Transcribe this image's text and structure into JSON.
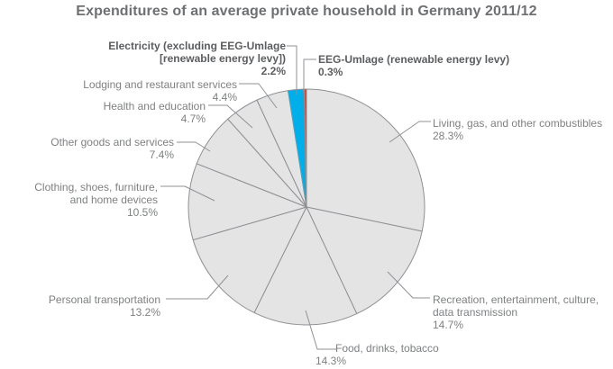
{
  "chart_data": {
    "type": "pie",
    "title": "Expenditures of an average private household in Germany 2011/12",
    "unit": "%",
    "start_angle_deg": 0,
    "direction": "clockwise",
    "legend_position": "none",
    "slices": [
      {
        "id": "living",
        "label": "Living, gas, and other combustibles",
        "value": 28.3,
        "pct_text": "28.3%",
        "color": "#e4e4e5"
      },
      {
        "id": "recreation",
        "label": "Recreation, entertainment, culture,\ndata transmission",
        "value": 14.7,
        "pct_text": "14.7%",
        "color": "#e4e4e5"
      },
      {
        "id": "food",
        "label": "Food, drinks, tobacco",
        "value": 14.3,
        "pct_text": "14.3%",
        "color": "#e4e4e5"
      },
      {
        "id": "personal-transportation",
        "label": "Personal transportation",
        "value": 13.2,
        "pct_text": "13.2%",
        "color": "#e4e4e5"
      },
      {
        "id": "clothing",
        "label": "Clothing, shoes, furniture,\nand home devices",
        "value": 10.5,
        "pct_text": "10.5%",
        "color": "#e4e4e5"
      },
      {
        "id": "other-goods",
        "label": "Other goods and services",
        "value": 7.4,
        "pct_text": "7.4%",
        "color": "#e4e4e5"
      },
      {
        "id": "health",
        "label": "Health and education",
        "value": 4.7,
        "pct_text": "4.7%",
        "color": "#e4e4e5"
      },
      {
        "id": "lodging",
        "label": "Lodging and restaurant services",
        "value": 4.4,
        "pct_text": "4.4%",
        "color": "#e4e4e5"
      },
      {
        "id": "electricity",
        "label": "Electricity (excluding EEG-Umlage\n[renewable energy levy])",
        "value": 2.2,
        "pct_text": "2.2%",
        "color": "#00aeea",
        "emphasis": true
      },
      {
        "id": "eeg",
        "label": "EEG-Umlage (renewable energy levy)",
        "value": 0.3,
        "pct_text": "0.3%",
        "color": "#e4332b",
        "emphasis": true
      }
    ],
    "colors": {
      "default_slice": "#e4e4e5",
      "electricity_slice": "#00aeea",
      "eeg_slice": "#e4332b",
      "stroke": "#8e9093",
      "leader_line": "#909295",
      "title_text": "#6f7072",
      "label_text": "#7f8082",
      "emphasis_text": "#5c5d5f"
    }
  }
}
